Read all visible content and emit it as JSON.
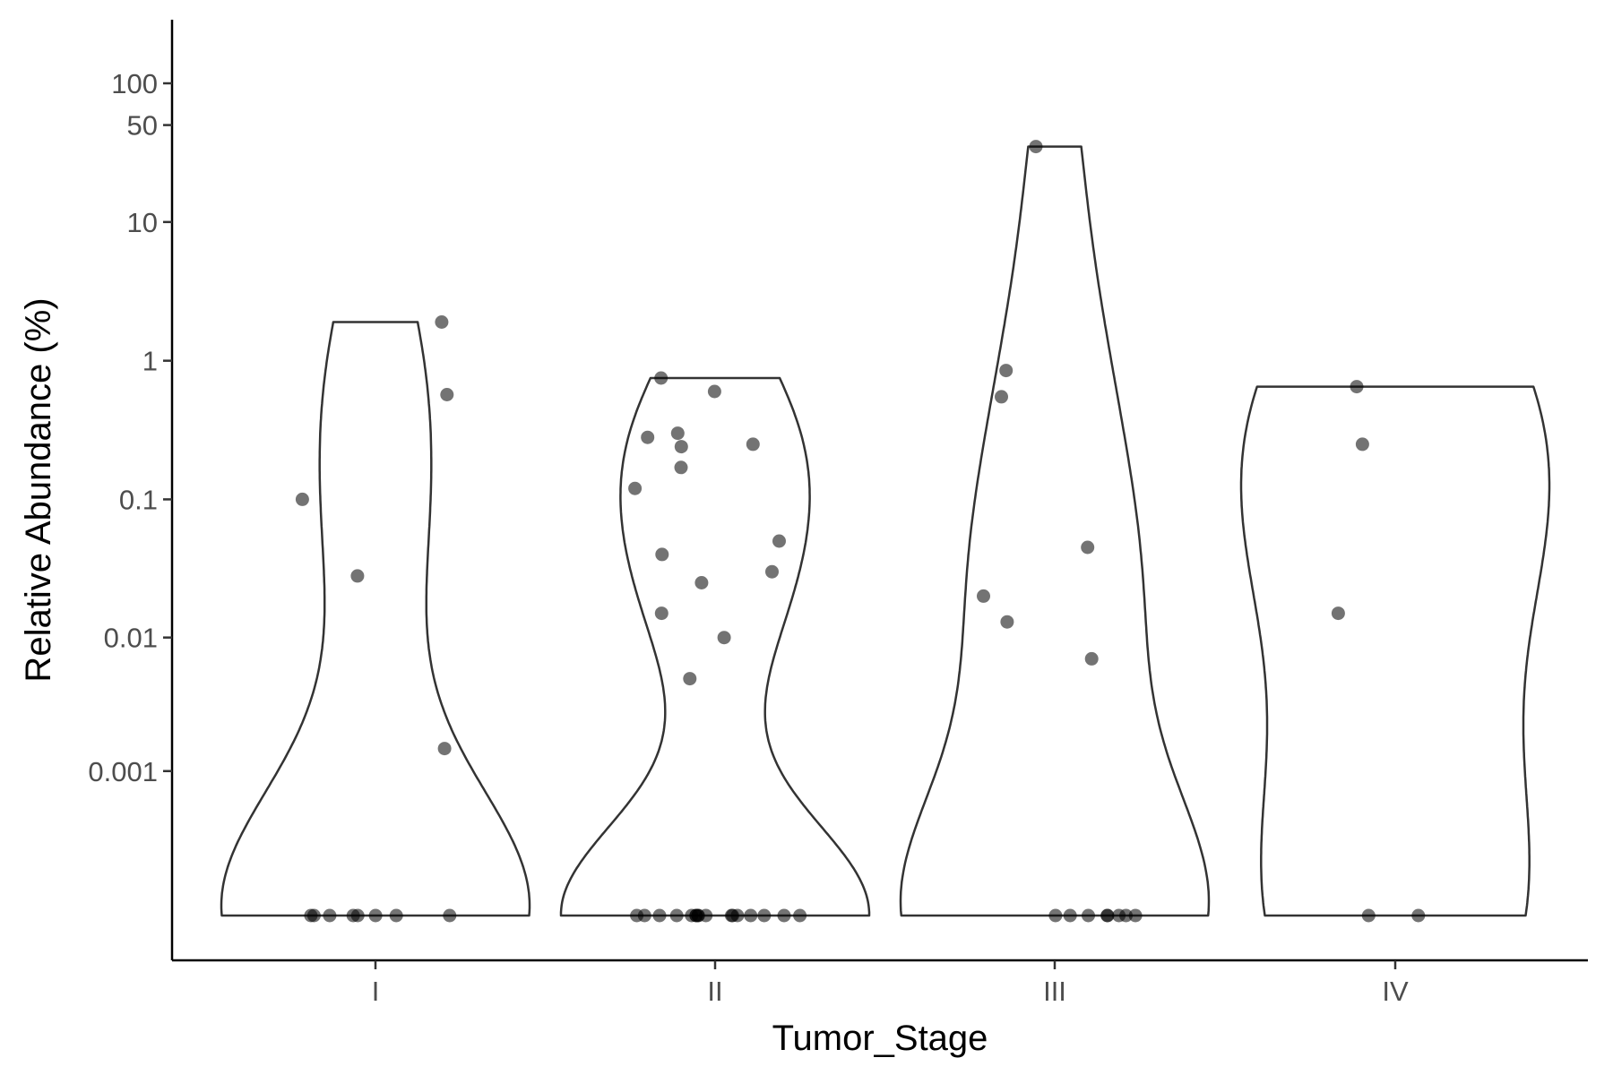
{
  "chart_data": {
    "type": "violin",
    "xlabel": "Tumor_Stage",
    "ylabel": "Relative Abundance (%)",
    "y_scale": "pseudo-log",
    "y_ticks": [
      {
        "value": 0.001,
        "label": "0.001"
      },
      {
        "value": 0.01,
        "label": "0.01"
      },
      {
        "value": 0.1,
        "label": "0.1"
      },
      {
        "value": 1,
        "label": "1"
      },
      {
        "value": 10,
        "label": "10"
      },
      {
        "value": 50,
        "label": "50"
      },
      {
        "value": 100,
        "label": "100"
      }
    ],
    "categories": [
      "I",
      "II",
      "III",
      "IV"
    ],
    "groups": [
      {
        "category": "I",
        "values": [
          1.9,
          0.57,
          0.1,
          0.028,
          0.0015,
          0,
          0,
          0,
          0,
          0,
          0,
          0,
          0
        ],
        "max": 1.9
      },
      {
        "category": "II",
        "values": [
          0.75,
          0.6,
          0.3,
          0.28,
          0.25,
          0.24,
          0.17,
          0.12,
          0.05,
          0.04,
          0.03,
          0.025,
          0.015,
          0.01,
          0.005,
          0,
          0,
          0,
          0,
          0,
          0,
          0,
          0,
          0,
          0,
          0,
          0,
          0,
          0,
          0,
          0,
          0
        ],
        "max": 0.75
      },
      {
        "category": "III",
        "values": [
          35,
          0.85,
          0.55,
          0.045,
          0.02,
          0.013,
          0.007,
          0,
          0,
          0,
          0,
          0,
          0,
          0,
          0
        ],
        "max": 35
      },
      {
        "category": "IV",
        "values": [
          0.65,
          0.25,
          0.015,
          0,
          0
        ],
        "max": 0.65
      }
    ]
  }
}
